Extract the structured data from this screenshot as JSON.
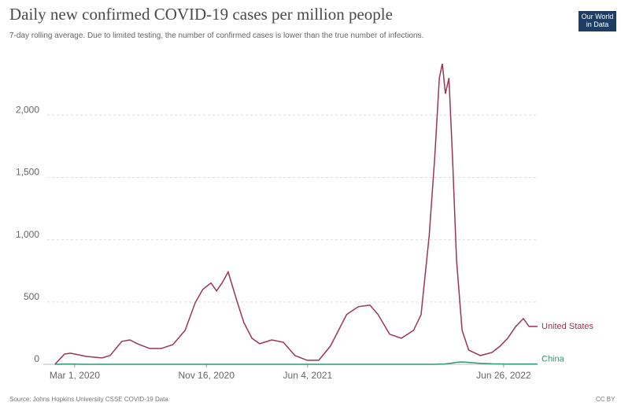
{
  "chart_data": {
    "type": "line",
    "title": "Daily new confirmed COVID-19 cases per million people",
    "subtitle": "7-day rolling average. Due to limited testing, the number of confirmed cases is lower than the true number of infections.",
    "logo": "Our World in Data",
    "source": "Source: Johns Hopkins University CSSE COVID-19 Data",
    "license": "CC BY",
    "x": [
      "2020-01-22",
      "2020-02-10",
      "2020-02-22",
      "2020-03-24",
      "2020-04-24",
      "2020-05-10",
      "2020-06-02",
      "2020-06-18",
      "2020-07-03",
      "2020-07-27",
      "2020-08-19",
      "2020-09-11",
      "2020-10-05",
      "2020-10-25",
      "2020-11-09",
      "2020-11-25",
      "2020-12-06",
      "2020-12-17",
      "2020-12-29",
      "2021-01-14",
      "2021-01-29",
      "2021-02-14",
      "2021-03-01",
      "2021-03-25",
      "2021-04-17",
      "2021-05-10",
      "2021-06-03",
      "2021-06-26",
      "2021-07-19",
      "2021-08-20",
      "2021-09-12",
      "2021-10-05",
      "2021-10-21",
      "2021-11-13",
      "2021-12-06",
      "2021-12-30",
      "2022-01-14",
      "2022-01-30",
      "2022-02-10",
      "2022-02-19",
      "2022-02-25",
      "2022-03-03",
      "2022-03-10",
      "2022-03-17",
      "2022-03-25",
      "2022-04-05",
      "2022-04-18",
      "2022-05-11",
      "2022-06-03",
      "2022-06-19",
      "2022-07-04",
      "2022-07-20",
      "2022-08-04",
      "2022-08-15",
      "2022-09-01"
    ],
    "series": [
      {
        "name": "United States",
        "color": "#9b3650",
        "values": [
          0,
          82,
          89,
          63,
          51,
          70,
          184,
          196,
          165,
          127,
          127,
          158,
          272,
          494,
          601,
          652,
          589,
          652,
          741,
          525,
          335,
          209,
          165,
          196,
          177,
          70,
          32,
          32,
          146,
          399,
          462,
          475,
          399,
          241,
          209,
          272,
          399,
          1032,
          1665,
          2298,
          2412,
          2171,
          2298,
          1665,
          842,
          272,
          114,
          70,
          95,
          146,
          209,
          304,
          367,
          304,
          304
        ]
      },
      {
        "name": "China",
        "color": "#2b9a6e",
        "values": [
          0,
          2,
          1,
          0,
          0,
          0,
          0,
          0,
          0,
          0,
          0,
          0,
          0,
          0,
          0,
          0,
          0,
          0,
          0,
          0,
          0,
          0,
          0,
          0,
          0,
          0,
          0,
          0,
          0,
          0,
          0,
          0,
          0,
          0,
          0,
          0,
          0,
          0,
          0,
          1,
          2,
          3,
          6,
          10,
          16,
          19,
          15,
          8,
          4,
          3,
          2,
          2,
          2,
          2,
          2
        ]
      }
    ],
    "xlim": [
      "2019-12-30",
      "2022-09-01"
    ],
    "xticks": [
      {
        "value": "2020-03-01",
        "label": "Mar 1, 2020"
      },
      {
        "value": "2020-11-16",
        "label": "Nov 16, 2020"
      },
      {
        "value": "2021-06-04",
        "label": "Jun 4, 2021"
      },
      {
        "value": "2022-06-26",
        "label": "Jun 26, 2022"
      }
    ],
    "ylim": [
      0,
      2450
    ],
    "yticks": [
      0,
      500,
      {
        "value": 1000,
        "label": "1,000"
      },
      {
        "value": 1500,
        "label": "1,500"
      },
      {
        "value": 2000,
        "label": "2,000"
      }
    ],
    "grid": true
  }
}
